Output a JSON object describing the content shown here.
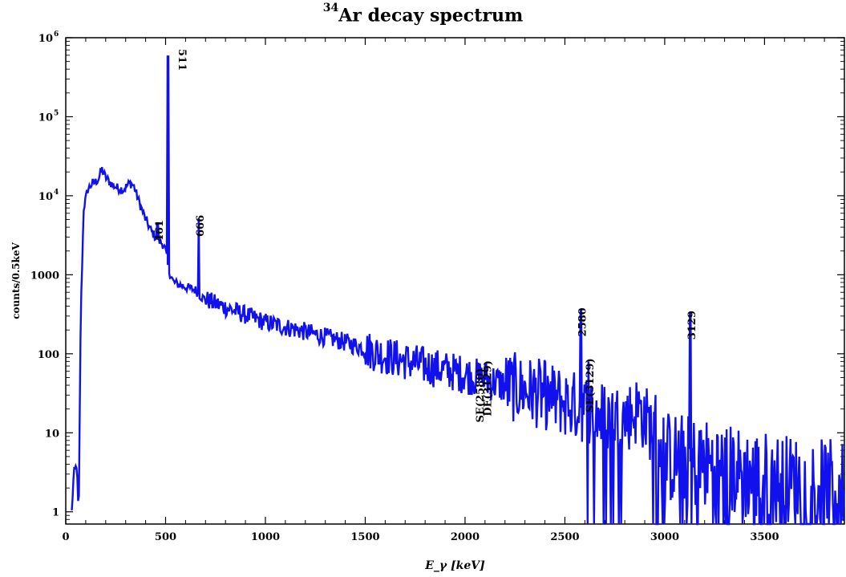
{
  "chart_data": {
    "type": "line",
    "title": {
      "superscript": "34",
      "main": "Ar decay spectrum"
    },
    "xlabel": "E_γ [keV]",
    "ylabel": "counts/0.5keV",
    "xlim": [
      0,
      3900
    ],
    "ylim": [
      0.7,
      1000000
    ],
    "y_scale": "log",
    "grid": false,
    "x_ticks": [
      {
        "value": 0,
        "label": "0"
      },
      {
        "value": 500,
        "label": "500"
      },
      {
        "value": 1000,
        "label": "1000"
      },
      {
        "value": 1500,
        "label": "1500"
      },
      {
        "value": 2000,
        "label": "2000"
      },
      {
        "value": 2500,
        "label": "2500"
      },
      {
        "value": 3000,
        "label": "3000"
      },
      {
        "value": 3500,
        "label": "3500"
      }
    ],
    "y_ticks": [
      {
        "value": 1,
        "label": "1"
      },
      {
        "value": 10,
        "label": "10"
      },
      {
        "value": 100,
        "label": "100"
      },
      {
        "value": 1000,
        "label": "1000"
      },
      {
        "value": 10000,
        "label": "10",
        "exponent": "4"
      },
      {
        "value": 100000,
        "label": "10",
        "exponent": "5"
      },
      {
        "value": 1000000,
        "label": "10",
        "exponent": "6"
      }
    ],
    "series": [
      {
        "color": "#1111ee",
        "continuum": [
          [
            30,
            1
          ],
          [
            40,
            3
          ],
          [
            55,
            4
          ],
          [
            65,
            0.8
          ],
          [
            75,
            300
          ],
          [
            90,
            7000
          ],
          [
            110,
            12000
          ],
          [
            130,
            14000
          ],
          [
            150,
            15000
          ],
          [
            165,
            16500
          ],
          [
            180,
            22000
          ],
          [
            200,
            17000
          ],
          [
            230,
            14000
          ],
          [
            260,
            12500
          ],
          [
            290,
            12000
          ],
          [
            320,
            14500
          ],
          [
            340,
            13500
          ],
          [
            370,
            8000
          ],
          [
            400,
            5000
          ],
          [
            430,
            3500
          ],
          [
            460,
            2800
          ],
          [
            490,
            2400
          ],
          [
            500,
            2000
          ],
          [
            515,
            1150
          ],
          [
            540,
            800
          ],
          [
            600,
            700
          ],
          [
            650,
            640
          ],
          [
            680,
            520
          ],
          [
            750,
            430
          ],
          [
            900,
            310
          ],
          [
            1000,
            250
          ],
          [
            1200,
            190
          ],
          [
            1400,
            140
          ],
          [
            1600,
            95
          ],
          [
            1800,
            70
          ],
          [
            2000,
            55
          ],
          [
            2200,
            40
          ],
          [
            2400,
            30
          ],
          [
            2500,
            24
          ],
          [
            2600,
            20
          ],
          [
            2700,
            16
          ],
          [
            2800,
            15
          ],
          [
            2870,
            20
          ],
          [
            2950,
            10
          ],
          [
            3000,
            5
          ],
          [
            3200,
            4
          ],
          [
            3400,
            3
          ],
          [
            3600,
            2.5
          ],
          [
            3900,
            2
          ]
        ],
        "peaks": [
          {
            "energy": 461,
            "height": 4500
          },
          {
            "energy": 511,
            "height": 580000
          },
          {
            "energy": 666,
            "height": 5200
          },
          {
            "energy": 2080,
            "height": 60
          },
          {
            "energy": 2105,
            "height": 75
          },
          {
            "energy": 2580,
            "height": 350
          },
          {
            "energy": 2618,
            "height": 80
          },
          {
            "energy": 3129,
            "height": 320
          }
        ]
      }
    ],
    "annotations": [
      {
        "text": "461",
        "x": 461,
        "y": 4500
      },
      {
        "text": "511",
        "x": 511,
        "y": 580000
      },
      {
        "text": "666",
        "x": 666,
        "y": 5200
      },
      {
        "text": "SE(2580)",
        "x": 2068,
        "y": 60
      },
      {
        "text": "DE(3129)",
        "x": 2107,
        "y": 75
      },
      {
        "text": "2580",
        "x": 2580,
        "y": 350
      },
      {
        "text": "SE(3129)",
        "x": 2618,
        "y": 80
      },
      {
        "text": "3129",
        "x": 3129,
        "y": 320
      }
    ]
  }
}
